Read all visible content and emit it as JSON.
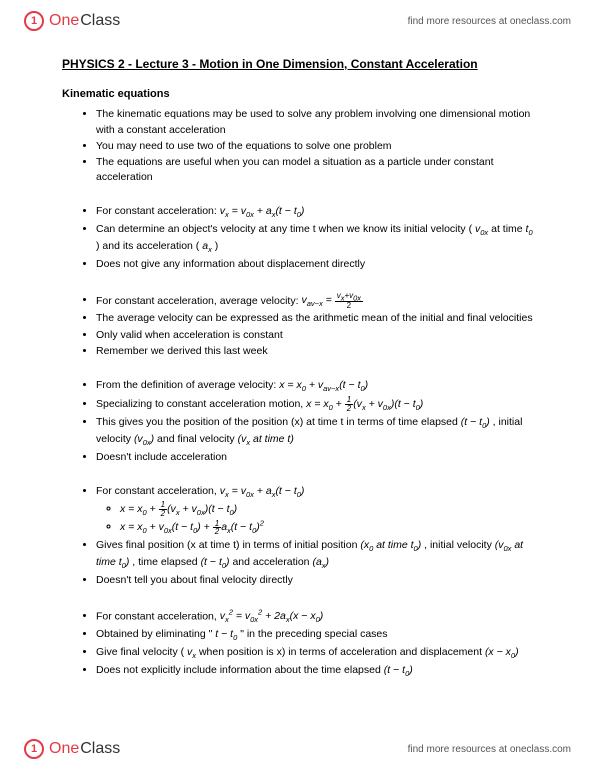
{
  "brand": {
    "part1": "One",
    "part2": "Class"
  },
  "header_link": "find more resources at oneclass.com",
  "footer_link": "find more resources at oneclass.com",
  "title": "PHYSICS 2 - Lecture 3 -  Motion in One Dimension, Constant Acceleration",
  "section": "Kinematic equations",
  "b1": {
    "i1": "The kinematic equations may be used to solve any problem involving one dimensional motion with a constant acceleration",
    "i2": "You may need to use two of the equations to solve one problem",
    "i3": "The equations are useful when you can model a situation as a particle under constant acceleration"
  },
  "b2": {
    "i1a": "For constant acceleration: ",
    "i2a": "Can determine an object's velocity at any time t when we know its initial velocity ( ",
    "i2b": " at time ",
    "i2c": " ) and its acceleration ( ",
    "i2d": " )",
    "i3": "Does not give any information about displacement directly"
  },
  "b3": {
    "i1a": "For constant acceleration, average velocity: ",
    "i2": "The average velocity can be expressed as the arithmetic mean of the initial and final velocities",
    "i3": "Only valid when acceleration is constant",
    "i4": "Remember we derived this last week"
  },
  "b4": {
    "i1a": "From the definition of average velocity: ",
    "i2a": "Specializing to constant acceleration motion, ",
    "i3a": "This gives you the position of the position (x) at time t in terms of time elapsed ",
    "i3b": " , initial velocity ",
    "i3c": " and final velocity ",
    "i4": "Doesn't include acceleration"
  },
  "b5": {
    "i1a": "For constant acceleration, ",
    "i2a": "Gives final position (x at time t) in terms of initial position ",
    "i2b": " , initial velocity ",
    "i2c": " , time elapsed ",
    "i2d": " and acceleration ",
    "i3": "Doesn't tell you about final velocity directly"
  },
  "b6": {
    "i1a": "For constant acceleration, ",
    "i2a": "Obtained by eliminating \" ",
    "i2b": " \" in the preceding special cases",
    "i3a": "Give final velocity ( ",
    "i3b": " when position is x) in terms of acceleration and displacement ",
    "i4a": "Does not explicitly include information about the time elapsed "
  },
  "math": {
    "vx": "v",
    "v0x": "v",
    "ax": "a",
    "t0": "t",
    "x0": "x",
    "at_time": " at time "
  }
}
